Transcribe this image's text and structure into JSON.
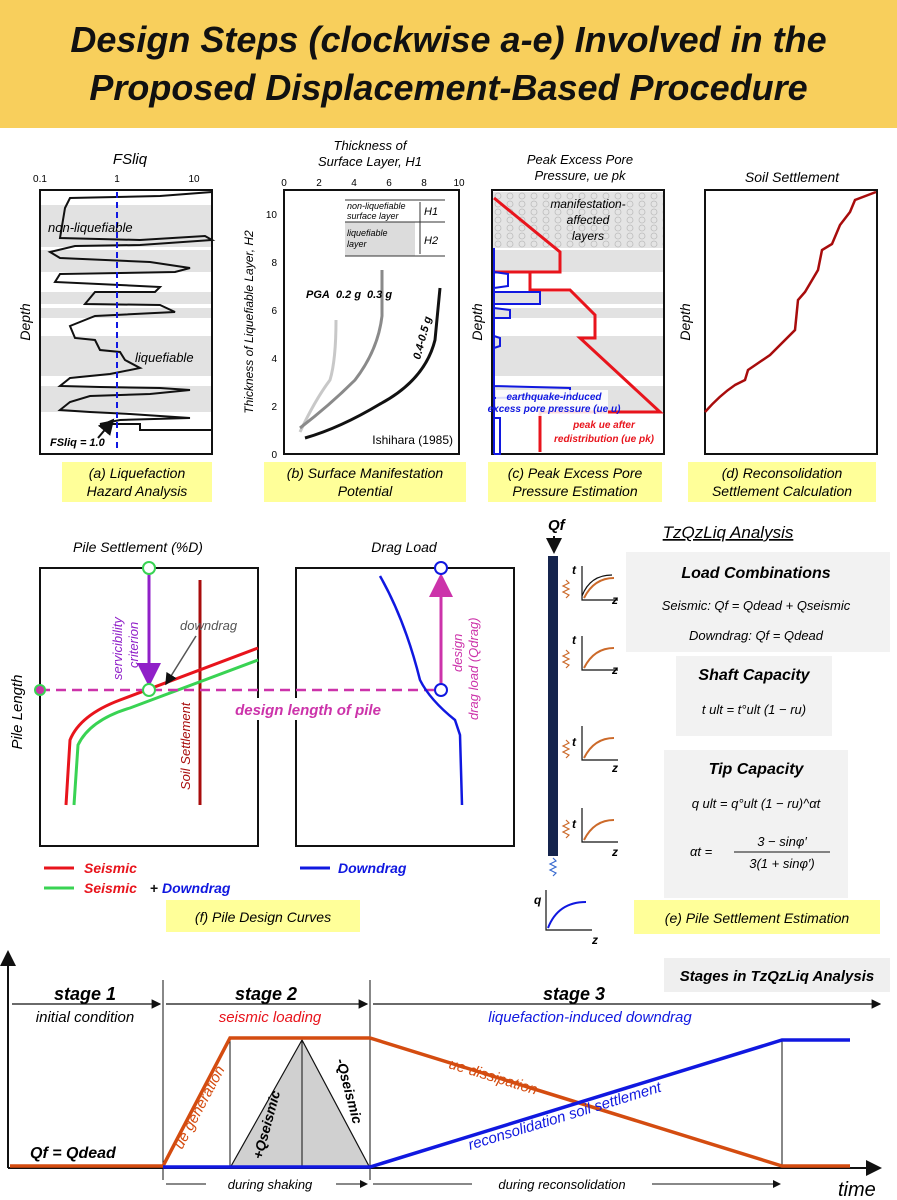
{
  "title": {
    "line1": "Design Steps (clockwise a-e) Involved in the",
    "line2": "Proposed Displacement-Based Procedure"
  },
  "panel_a": {
    "axis_title": "FSliq",
    "ticks": [
      "0.1",
      "1",
      "10"
    ],
    "ylabel": "Depth",
    "label_nonliq": "non-liquefiable",
    "label_liq": "liquefiable",
    "fs_label": "FSliq = 1.0",
    "caption1": "(a) Liquefaction",
    "caption2": "Hazard Analysis"
  },
  "panel_b": {
    "axis_title1": "Thickness of",
    "axis_title2": "Surface Layer, H1",
    "x_ticks": [
      "0",
      "2",
      "4",
      "6",
      "8",
      "10"
    ],
    "y_ticks": [
      "0",
      "2",
      "4",
      "6",
      "8",
      "10"
    ],
    "ylabel": "Thickness of Liquefiable Layer, H2",
    "inset_nonliq1": "non-liquefiable",
    "inset_nonliq2": "surface layer",
    "inset_liq1": "liquefiable",
    "inset_liq2": "layer",
    "h1": "H1",
    "h2": "H2",
    "pga": "PGA",
    "c1": "0.2 g",
    "c2": "0.3 g",
    "c3": "0.4-0.5 g",
    "ref": "Ishihara (1985)",
    "caption1": "(b) Surface Manifestation",
    "caption2": "Potential"
  },
  "panel_c": {
    "axis_title1": "Peak Excess Pore",
    "axis_title2": "Pressure, ue pk",
    "ylabel": "Depth",
    "manif1": "manifestation-",
    "manif2": "affected",
    "manif3": "layers",
    "eq1": "earthquake-induced",
    "eq2": "excess pore pressure (ue u)",
    "pk1": "peak ue after",
    "pk2": "redistribution (ue pk)",
    "caption1": "(c) Peak Excess Pore",
    "caption2": "Pressure Estimation"
  },
  "panel_d": {
    "axis_title": "Soil Settlement",
    "ylabel": "Depth",
    "caption1": "(d) Reconsolidation",
    "caption2": "Settlement Calculation"
  },
  "panel_f": {
    "title_left": "Pile Settlement (%D)",
    "title_right": "Drag Load",
    "ylabel": "Pile Length",
    "service1": "servicibility",
    "service2": "criterion",
    "downdrag": "downdrag",
    "design_len": "design length of pile",
    "soil_settle": "Soil Settlement",
    "design_drag1": "design",
    "design_drag2": "drag load (Qdrag)",
    "legend_seismic": "Seismic",
    "legend_plus": "+",
    "legend_downdrag": "Downdrag",
    "caption": "(f) Pile Design Curves"
  },
  "panel_e": {
    "header": "TzQzLiq Analysis",
    "qf": "Qf",
    "lc_title": "Load Combinations",
    "lc_seismic": "Seismic: Qf = Qdead + Qseismic",
    "lc_downdrag": "Downdrag: Qf = Qdead",
    "shaft_title": "Shaft Capacity",
    "shaft_eq": "t ult = t°ult (1 − ru)",
    "tip_title": "Tip Capacity",
    "tip_eq": "q ult = q°ult (1 − ru)^αt",
    "alpha_eq_l": "αt =",
    "alpha_num": "3 − sinφ′",
    "alpha_den": "3(1 + sinφ′)",
    "t": "t",
    "z": "z",
    "q": "q",
    "caption": "(e) Pile Settlement Estimation"
  },
  "stages": {
    "box_title": "Stages in TzQzLiq Analysis",
    "stage1": "stage 1",
    "stage2": "stage 2",
    "stage3": "stage 3",
    "s1_desc": "initial condition",
    "s2_desc": "seismic loading",
    "s3_desc": "liquefaction-induced downdrag",
    "qf_label": "Qf = Qdead",
    "ue_gen": "ue generation",
    "ue_diss": "ue dissipation",
    "recon": "reconsolidation soil settlement",
    "plus_q": "+Qseismic",
    "minus_q": "-Qseismic",
    "during_shaking": "during shaking",
    "during_recon": "during reconsolidation",
    "time": "time"
  },
  "colors": {
    "title_bg": "#f8cf5c",
    "caption_bg": "#ffff99",
    "red": "#e8141c",
    "green": "#39d353",
    "blue": "#1018e0",
    "dark_red": "#a80c0c",
    "magenta": "#cc33aa",
    "purple": "#9020c8",
    "orange": "#d44c10",
    "navy": "#15244d"
  }
}
